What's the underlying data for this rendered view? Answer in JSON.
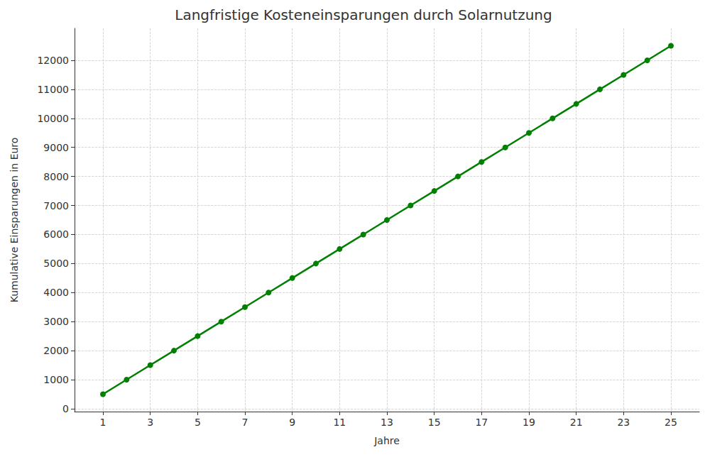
{
  "chart_data": {
    "type": "line",
    "title": "Langfristige Kosteneinsparungen durch Solarnutzung",
    "x_label": "Jahre",
    "y_label": "Kumulative Einsparungen in Euro",
    "x": [
      1,
      2,
      3,
      4,
      5,
      6,
      7,
      8,
      9,
      10,
      11,
      12,
      13,
      14,
      15,
      16,
      17,
      18,
      19,
      20,
      21,
      22,
      23,
      24,
      25
    ],
    "values": [
      500,
      1000,
      1500,
      2000,
      2500,
      3000,
      3500,
      4000,
      4500,
      5000,
      5500,
      6000,
      6500,
      7000,
      7500,
      8000,
      8500,
      9000,
      9500,
      10000,
      10500,
      11000,
      11500,
      12000,
      12500
    ],
    "color": "#008000",
    "marker": "circle",
    "line_style": "solid",
    "xlim": [
      -0.2,
      26.2
    ],
    "xticks": [
      1,
      3,
      5,
      7,
      9,
      11,
      13,
      15,
      17,
      19,
      21,
      23,
      25
    ],
    "ylim": [
      -100,
      13100
    ],
    "yticks": [
      0,
      1000,
      2000,
      3000,
      4000,
      5000,
      6000,
      7000,
      8000,
      9000,
      10000,
      11000,
      12000
    ],
    "grid": true
  }
}
